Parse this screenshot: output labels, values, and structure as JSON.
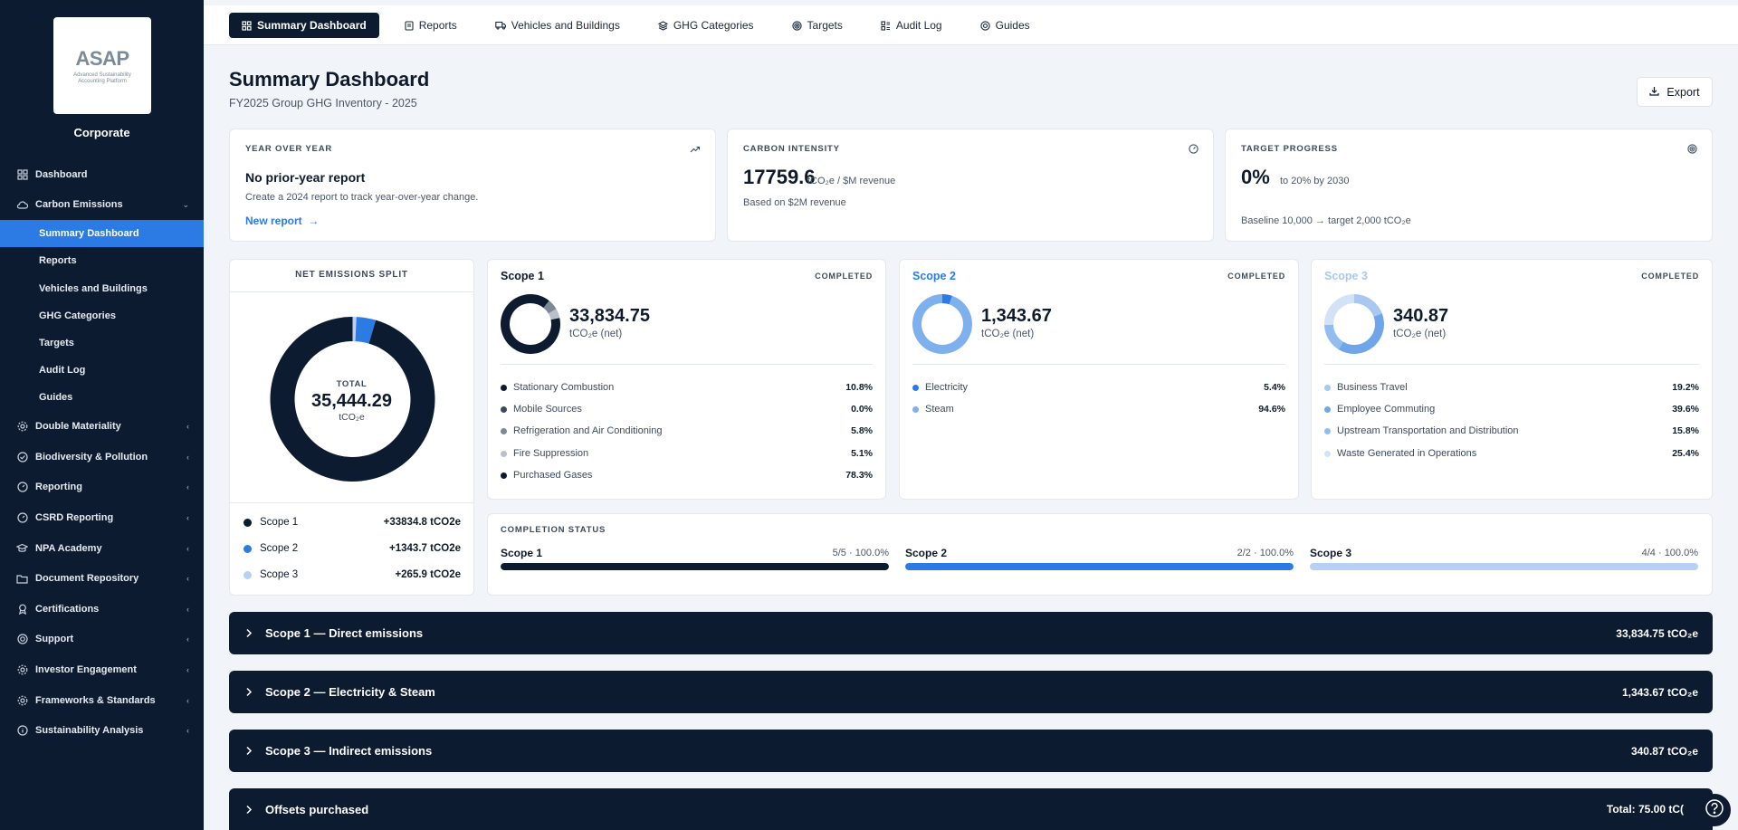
{
  "sidebar": {
    "logo_text": "ASAP",
    "logo_subtitle": "Advanced Sustainability Accounting Platform",
    "org_name": "Corporate",
    "items": [
      {
        "label": "Dashboard",
        "icon": "grid-icon"
      },
      {
        "label": "Carbon Emissions",
        "icon": "cloud-icon",
        "expanded": true
      },
      {
        "label": "Double Materiality",
        "icon": "gear-icon"
      },
      {
        "label": "Biodiversity & Pollution",
        "icon": "check-circle-icon"
      },
      {
        "label": "Reporting",
        "icon": "gauge-icon"
      },
      {
        "label": "CSRD Reporting",
        "icon": "gauge-icon"
      },
      {
        "label": "NPA Academy",
        "icon": "graduation-cap-icon"
      },
      {
        "label": "Document Repository",
        "icon": "folder-icon"
      },
      {
        "label": "Certifications",
        "icon": "award-icon"
      },
      {
        "label": "Support",
        "icon": "lifebuoy-icon"
      },
      {
        "label": "Investor Engagement",
        "icon": "gear-icon"
      },
      {
        "label": "Frameworks & Standards",
        "icon": "gear-icon"
      },
      {
        "label": "Sustainability Analysis",
        "icon": "info-icon"
      }
    ],
    "subitems": [
      {
        "label": "Summary Dashboard",
        "active": true
      },
      {
        "label": "Reports"
      },
      {
        "label": "Vehicles and Buildings"
      },
      {
        "label": "GHG Categories"
      },
      {
        "label": "Targets"
      },
      {
        "label": "Audit Log"
      },
      {
        "label": "Guides"
      }
    ]
  },
  "tabs": [
    {
      "label": "Summary Dashboard",
      "icon": "dashboard-icon",
      "active": true
    },
    {
      "label": "Reports",
      "icon": "document-icon"
    },
    {
      "label": "Vehicles and Buildings",
      "icon": "truck-icon"
    },
    {
      "label": "GHG Categories",
      "icon": "layers-icon"
    },
    {
      "label": "Targets",
      "icon": "target-icon"
    },
    {
      "label": "Audit Log",
      "icon": "audit-icon"
    },
    {
      "label": "Guides",
      "icon": "lifebuoy-icon"
    }
  ],
  "header": {
    "title": "Summary Dashboard",
    "subtitle": "FY2025 Group GHG Inventory - 2025",
    "export_label": "Export"
  },
  "kpis": {
    "yoy": {
      "label": "YEAR OVER YEAR",
      "title": "No prior-year report",
      "desc": "Create a 2024 report to track year-over-year change.",
      "link": "New report  →"
    },
    "intensity": {
      "label": "CARBON INTENSITY",
      "value": "17759.6",
      "unit": "tCO₂e / $M revenue",
      "note": "Based on $2M revenue"
    },
    "target": {
      "label": "TARGET PROGRESS",
      "value": "0%",
      "unit": "to 20% by 2030",
      "note": "Baseline 10,000 → target 2,000 tCO₂e"
    }
  },
  "split": {
    "title": "NET EMISSIONS SPLIT",
    "total_label": "TOTAL",
    "total_value": "35,444.29",
    "total_unit": "tCO₂e",
    "legend": [
      {
        "name": "Scope 1",
        "value": "+33834.8 tCO2e",
        "color": "#0d1b30"
      },
      {
        "name": "Scope 2",
        "value": "+1343.7 tCO2e",
        "color": "#2c7be5"
      },
      {
        "name": "Scope 3",
        "value": "+265.9 tCO2e",
        "color": "#b6d1f3"
      }
    ]
  },
  "chart_data": {
    "type": "pie",
    "title": "NET EMISSIONS SPLIT",
    "categories": [
      "Scope 1",
      "Scope 2",
      "Scope 3"
    ],
    "values": [
      33834.8,
      1343.7,
      265.9
    ],
    "colors": [
      "#0d1b30",
      "#2c7be5",
      "#b6d1f3"
    ]
  },
  "scopes": [
    {
      "name": "Scope 1",
      "status": "COMPLETED",
      "value": "33,834.75",
      "unit": "tCO₂e (net)",
      "name_color": "#0f1b2d",
      "categories": [
        {
          "name": "Stationary Combustion",
          "pct": "10.8%",
          "p": 10.8,
          "color": "#0d1b30"
        },
        {
          "name": "Mobile Sources",
          "pct": "0.0%",
          "p": 0.0,
          "color": "#3d4a5c"
        },
        {
          "name": "Refrigeration and Air Conditioning",
          "pct": "5.8%",
          "p": 5.8,
          "color": "#7d8795"
        },
        {
          "name": "Fire Suppression",
          "pct": "5.1%",
          "p": 5.1,
          "color": "#b9c0c9"
        },
        {
          "name": "Purchased Gases",
          "pct": "78.3%",
          "p": 78.3,
          "color": "#0d1b30"
        }
      ]
    },
    {
      "name": "Scope 2",
      "status": "COMPLETED",
      "value": "1,343.67",
      "unit": "tCO₂e (net)",
      "name_color": "#2c7be5",
      "categories": [
        {
          "name": "Electricity",
          "pct": "5.4%",
          "p": 5.4,
          "color": "#2c7be5"
        },
        {
          "name": "Steam",
          "pct": "94.6%",
          "p": 94.6,
          "color": "#7fb0ee"
        }
      ]
    },
    {
      "name": "Scope 3",
      "status": "COMPLETED",
      "value": "340.87",
      "unit": "tCO₂e (net)",
      "name_color": "#a9c8f0",
      "categories": [
        {
          "name": "Business Travel",
          "pct": "19.2%",
          "p": 19.2,
          "color": "#a9c8f0"
        },
        {
          "name": "Employee Commuting",
          "pct": "39.6%",
          "p": 39.6,
          "color": "#6fa6ea"
        },
        {
          "name": "Upstream Transportation and Distribution",
          "pct": "15.8%",
          "p": 15.8,
          "color": "#94bdef"
        },
        {
          "name": "Waste Generated in Operations",
          "pct": "25.4%",
          "p": 25.4,
          "color": "#d3e3f7"
        }
      ]
    }
  ],
  "completion": {
    "title": "COMPLETION STATUS",
    "items": [
      {
        "name": "Scope 1",
        "ratio": "5/5 · 100.0%",
        "progress": 1.0,
        "color": "#0d1b30"
      },
      {
        "name": "Scope 2",
        "ratio": "2/2 · 100.0%",
        "progress": 1.0,
        "color": "#2c7be5"
      },
      {
        "name": "Scope 3",
        "ratio": "4/4 · 100.0%",
        "progress": 1.0,
        "color": "#b6d1f3"
      }
    ]
  },
  "accordions": [
    {
      "title": "Scope 1 — Direct emissions",
      "total": "33,834.75 tCO₂e"
    },
    {
      "title": "Scope 2 — Electricity & Steam",
      "total": "1,343.67 tCO₂e"
    },
    {
      "title": "Scope 3 — Indirect emissions",
      "total": "340.87 tCO₂e"
    },
    {
      "title": "Offsets purchased",
      "total": "Total: 75.00 tC("
    }
  ]
}
